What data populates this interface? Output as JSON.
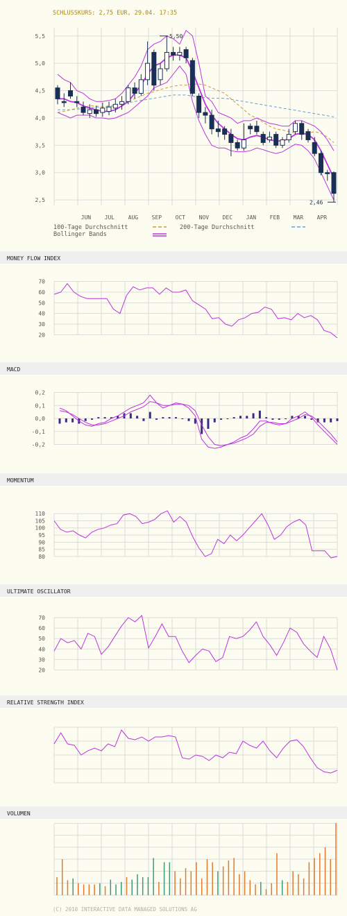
{
  "header": {
    "close_text": "SCHLUSSKURS: 2,75 EUR, 29.04. 17:35"
  },
  "footer": {
    "copyright": "(C) 2010 INTERACTIVE DATA MANAGED SOLUTIONS AG"
  },
  "colors": {
    "background": "#fdfcf0",
    "panel_header": "#efefef",
    "grid": "#dcdcdc",
    "candle": "#1a2f55",
    "bollinger": "#bb33dd",
    "ma100": "#c89a3a",
    "ma200": "#6a9cd0",
    "volume_orange": "#e07a30",
    "volume_green": "#3a9a7a",
    "label": "#555555",
    "title": "#a88a10"
  },
  "legend": {
    "ma100": "100-Tage Durchschnitt",
    "ma200": "200-Tage Durchschnitt",
    "bollinger": "Bollinger Bands"
  },
  "panels": {
    "mfi": "MONEY FLOW INDEX",
    "macd": "MACD",
    "momentum": "MOMENTUM",
    "ultimate": "ULTIMATE OSCILLATOR",
    "rsi": "RELATIVE STRENGTH INDEX",
    "volume": "VOLUMEN"
  },
  "chart_data": [
    {
      "type": "candlestick",
      "name": "price",
      "months": [
        "JUN",
        "JUL",
        "AUG",
        "SEP",
        "OCT",
        "NOV",
        "DEC",
        "JAN",
        "FEB",
        "MAR",
        "APR"
      ],
      "y_ticks": [
        "5,5",
        "5,0",
        "4,5",
        "4,0",
        "3,5",
        "3,0",
        "2,5"
      ],
      "ylim": [
        2.4,
        5.65
      ],
      "annotations": {
        "high": "5,50",
        "low": "2,46"
      },
      "candles": [
        [
          4.55,
          4.35,
          4.6,
          4.25
        ],
        [
          4.3,
          4.28,
          4.45,
          4.2
        ],
        [
          4.5,
          4.4,
          4.65,
          4.35
        ],
        [
          4.3,
          4.28,
          4.4,
          4.2
        ],
        [
          4.2,
          4.1,
          4.3,
          4.05
        ],
        [
          4.08,
          4.15,
          4.25,
          4.0
        ],
        [
          4.15,
          4.08,
          4.22,
          4.02
        ],
        [
          4.1,
          4.18,
          4.28,
          4.02
        ],
        [
          4.12,
          4.2,
          4.3,
          4.05
        ],
        [
          4.18,
          4.25,
          4.35,
          4.1
        ],
        [
          4.25,
          4.3,
          4.4,
          4.15
        ],
        [
          4.3,
          4.55,
          4.6,
          4.25
        ],
        [
          4.55,
          4.45,
          4.65,
          4.35
        ],
        [
          4.45,
          4.7,
          4.8,
          4.4
        ],
        [
          4.7,
          5.0,
          5.4,
          4.6
        ],
        [
          5.2,
          4.6,
          5.25,
          4.5
        ],
        [
          4.7,
          4.9,
          5.0,
          4.6
        ],
        [
          4.9,
          5.2,
          5.5,
          4.85
        ],
        [
          5.2,
          5.15,
          5.3,
          5.05
        ],
        [
          5.15,
          5.2,
          5.3,
          5.05
        ],
        [
          5.25,
          5.1,
          5.3,
          5.0
        ],
        [
          5.05,
          4.45,
          5.1,
          4.4
        ],
        [
          4.4,
          4.1,
          4.45,
          4.0
        ],
        [
          4.1,
          4.05,
          4.2,
          3.9
        ],
        [
          4.05,
          3.8,
          4.15,
          3.7
        ],
        [
          3.8,
          3.75,
          3.95,
          3.65
        ],
        [
          3.8,
          3.7,
          3.85,
          3.6
        ],
        [
          3.7,
          3.55,
          3.8,
          3.3
        ],
        [
          3.55,
          3.45,
          3.6,
          3.4
        ],
        [
          3.45,
          3.6,
          3.9,
          3.4
        ],
        [
          3.85,
          3.8,
          3.9,
          3.7
        ],
        [
          3.85,
          3.75,
          3.95,
          3.7
        ],
        [
          3.7,
          3.55,
          3.75,
          3.5
        ],
        [
          3.6,
          3.65,
          3.75,
          3.55
        ],
        [
          3.7,
          3.5,
          3.75,
          3.45
        ],
        [
          3.5,
          3.6,
          3.65,
          3.45
        ],
        [
          3.6,
          3.7,
          3.8,
          3.55
        ],
        [
          3.75,
          3.9,
          3.95,
          3.7
        ],
        [
          3.9,
          3.7,
          3.95,
          3.6
        ],
        [
          3.75,
          3.6,
          3.8,
          3.55
        ],
        [
          3.55,
          3.35,
          3.65,
          3.3
        ],
        [
          3.35,
          3.0,
          3.4,
          2.95
        ],
        [
          3.0,
          2.98,
          3.05,
          2.85
        ],
        [
          3.0,
          2.62,
          3.02,
          2.46
        ]
      ],
      "bollinger_upper": [
        4.8,
        4.7,
        4.65,
        4.5,
        4.45,
        4.35,
        4.3,
        4.3,
        4.32,
        4.35,
        4.45,
        4.6,
        4.75,
        4.95,
        5.25,
        5.35,
        5.4,
        5.5,
        5.45,
        5.35,
        5.6,
        5.5,
        5.0,
        4.4,
        4.3,
        4.1,
        4.05,
        4.0,
        3.9,
        3.95,
        3.95,
        4.0,
        3.95,
        3.9,
        3.88,
        3.85,
        3.85,
        3.95,
        3.95,
        3.9,
        3.85,
        3.75,
        3.6,
        3.4
      ],
      "bollinger_middle": [
        4.35,
        4.35,
        4.3,
        4.28,
        4.22,
        4.18,
        4.15,
        4.12,
        4.12,
        4.15,
        4.22,
        4.3,
        4.45,
        4.6,
        4.8,
        4.95,
        5.0,
        5.1,
        5.15,
        5.15,
        5.1,
        4.85,
        4.55,
        4.25,
        4.05,
        3.9,
        3.8,
        3.7,
        3.62,
        3.6,
        3.65,
        3.68,
        3.65,
        3.6,
        3.58,
        3.58,
        3.62,
        3.7,
        3.72,
        3.7,
        3.6,
        3.4,
        3.15,
        2.9
      ],
      "bollinger_lower": [
        4.1,
        4.05,
        4.0,
        4.05,
        4.05,
        4.05,
        4.0,
        4.0,
        3.98,
        4.0,
        4.05,
        4.1,
        4.2,
        4.3,
        4.4,
        4.55,
        4.6,
        4.65,
        4.8,
        4.95,
        4.8,
        4.3,
        3.95,
        3.7,
        3.5,
        3.45,
        3.45,
        3.4,
        3.38,
        3.38,
        3.4,
        3.45,
        3.42,
        3.38,
        3.35,
        3.38,
        3.45,
        3.52,
        3.5,
        3.4,
        3.25,
        3.0,
        2.75,
        2.5
      ],
      "ma100": [
        4.1,
        4.12,
        4.15,
        4.18,
        4.2,
        4.22,
        4.22,
        4.2,
        4.2,
        4.22,
        4.25,
        4.3,
        4.35,
        4.4,
        4.45,
        4.48,
        4.52,
        4.55,
        4.58,
        4.6,
        4.6,
        4.62,
        4.62,
        4.6,
        4.55,
        4.5,
        4.45,
        4.35,
        4.25,
        4.15,
        4.05,
        4.0,
        3.92,
        3.85,
        3.8,
        3.78,
        3.75,
        3.72,
        3.7,
        3.72,
        3.75,
        3.72,
        3.65,
        3.55
      ],
      "ma200": [
        4.15,
        4.15,
        4.15,
        4.16,
        4.17,
        4.18,
        4.2,
        4.2,
        4.22,
        4.24,
        4.26,
        4.28,
        4.3,
        4.32,
        4.34,
        4.36,
        4.38,
        4.4,
        4.42,
        4.42,
        4.42,
        4.4,
        4.38,
        4.37,
        4.36,
        4.36,
        4.36,
        4.34,
        4.32,
        4.3,
        4.28,
        4.26,
        4.24,
        4.22,
        4.2,
        4.18,
        4.16,
        4.14,
        4.12,
        4.1,
        4.08,
        4.06,
        4.04,
        4.02
      ]
    },
    {
      "type": "line",
      "name": "mfi",
      "y_ticks": [
        "70",
        "60",
        "50",
        "40",
        "30",
        "20"
      ],
      "ylim": [
        15,
        75
      ],
      "values": [
        58,
        60,
        68,
        60,
        56,
        54,
        54,
        54,
        54,
        44,
        40,
        57,
        65,
        62,
        64,
        64,
        58,
        64,
        60,
        60,
        62,
        52,
        48,
        44,
        35,
        36,
        30,
        28,
        34,
        36,
        40,
        41,
        46,
        44,
        35,
        36,
        34,
        40,
        36,
        38,
        34,
        24,
        22,
        17
      ]
    },
    {
      "type": "line+bar",
      "name": "macd",
      "y_ticks": [
        "0,2",
        "0,1",
        "0,0",
        "-0,1",
        "-0,2"
      ],
      "ylim": [
        -0.24,
        0.24
      ],
      "macd": [
        0.08,
        0.06,
        0.02,
        -0.02,
        -0.05,
        -0.06,
        -0.04,
        -0.03,
        0.0,
        0.02,
        0.05,
        0.08,
        0.1,
        0.12,
        0.18,
        0.12,
        0.08,
        0.1,
        0.12,
        0.11,
        0.08,
        0.02,
        -0.16,
        -0.22,
        -0.23,
        -0.22,
        -0.2,
        -0.18,
        -0.15,
        -0.13,
        -0.08,
        -0.02,
        -0.02,
        -0.04,
        -0.05,
        -0.04,
        0.0,
        0.02,
        0.05,
        0.01,
        -0.05,
        -0.1,
        -0.15,
        -0.2
      ],
      "signal": [
        0.06,
        0.05,
        0.03,
        0.0,
        -0.03,
        -0.05,
        -0.05,
        -0.04,
        -0.02,
        0.0,
        0.02,
        0.05,
        0.07,
        0.09,
        0.13,
        0.12,
        0.1,
        0.1,
        0.11,
        0.11,
        0.1,
        0.06,
        -0.05,
        -0.14,
        -0.2,
        -0.21,
        -0.2,
        -0.19,
        -0.17,
        -0.15,
        -0.12,
        -0.06,
        -0.03,
        -0.03,
        -0.04,
        -0.04,
        -0.02,
        0.0,
        0.03,
        0.02,
        -0.02,
        -0.07,
        -0.12,
        -0.18
      ],
      "histogram": [
        -0.04,
        -0.03,
        -0.03,
        -0.04,
        -0.02,
        -0.01,
        0.01,
        0.01,
        0.01,
        0.02,
        0.04,
        0.04,
        0.02,
        -0.02,
        0.05,
        -0.01,
        0.01,
        0.01,
        0.01,
        0.0,
        -0.02,
        -0.04,
        -0.12,
        -0.08,
        -0.03,
        -0.01,
        0.0,
        0.01,
        0.02,
        0.02,
        0.04,
        0.06,
        0.01,
        -0.01,
        -0.01,
        0.0,
        0.02,
        0.02,
        0.02,
        -0.01,
        -0.03,
        -0.03,
        -0.03,
        -0.02
      ]
    },
    {
      "type": "line",
      "name": "momentum",
      "y_ticks": [
        "110",
        "105",
        "100",
        "95",
        "90",
        "85",
        "80"
      ],
      "ylim": [
        78,
        113
      ],
      "values": [
        105,
        99,
        97,
        98,
        95,
        93,
        97,
        99,
        100,
        102,
        103,
        109,
        110,
        108,
        103,
        104,
        106,
        110,
        112,
        104,
        108,
        104,
        94,
        86,
        80,
        82,
        92,
        89,
        95,
        91,
        95,
        100,
        105,
        110,
        102,
        92,
        95,
        101,
        104,
        106,
        102,
        84,
        84,
        84,
        79,
        80
      ]
    },
    {
      "type": "line",
      "name": "ultimate",
      "y_ticks": [
        "70",
        "60",
        "50",
        "40",
        "30",
        "20"
      ],
      "ylim": [
        17,
        74
      ],
      "values": [
        38,
        50,
        46,
        48,
        40,
        55,
        52,
        35,
        42,
        52,
        62,
        70,
        66,
        72,
        41,
        52,
        64,
        52,
        52,
        38,
        27,
        34,
        40,
        38,
        28,
        32,
        52,
        50,
        52,
        58,
        66,
        52,
        44,
        34,
        46,
        60,
        56,
        45,
        38,
        32,
        52,
        40,
        20
      ]
    },
    {
      "type": "line",
      "name": "rsi",
      "values": [
        58,
        66,
        58,
        57,
        50,
        53,
        55,
        53,
        58,
        56,
        68,
        62,
        61,
        63,
        60,
        63,
        63,
        64,
        63,
        48,
        47,
        50,
        49,
        46,
        50,
        48,
        52,
        51,
        60,
        57,
        55,
        60,
        53,
        48,
        55,
        60,
        61,
        56,
        48,
        41,
        38,
        37,
        39
      ]
    },
    {
      "type": "bar",
      "name": "volume",
      "values": [
        30,
        60,
        25,
        28,
        20,
        18,
        18,
        18,
        20,
        15,
        26,
        18,
        22,
        30,
        26,
        35,
        30,
        30,
        62,
        22,
        55,
        55,
        40,
        28,
        45,
        40,
        55,
        28,
        60,
        55,
        40,
        48,
        58,
        62,
        35,
        40,
        25,
        18,
        22,
        10,
        20,
        70,
        25,
        22,
        40,
        35,
        28,
        55,
        62,
        70,
        80,
        60,
        120
      ],
      "colors": [
        "o",
        "o",
        "o",
        "g",
        "o",
        "o",
        "o",
        "o",
        "g",
        "o",
        "g",
        "g",
        "g",
        "o",
        "g",
        "g",
        "g",
        "g",
        "g",
        "o",
        "g",
        "g",
        "o",
        "o",
        "o",
        "o",
        "o",
        "o",
        "o",
        "o",
        "g",
        "o",
        "o",
        "o",
        "o",
        "o",
        "o",
        "o",
        "g",
        "o",
        "o",
        "o",
        "g",
        "o",
        "o",
        "o",
        "o",
        "o",
        "o",
        "o",
        "o",
        "o",
        "o"
      ]
    }
  ]
}
